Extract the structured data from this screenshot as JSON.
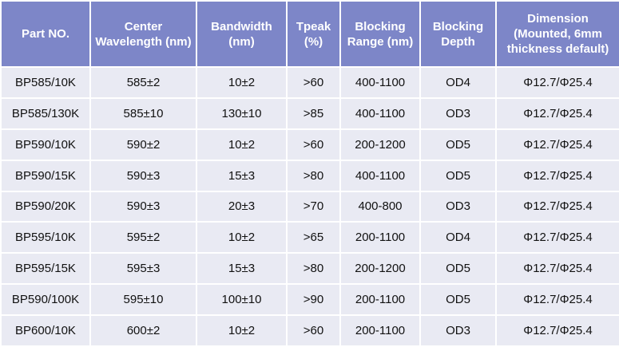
{
  "table": {
    "header": [
      "Part NO.",
      "Center Wavelength (nm)",
      "Bandwidth (nm)",
      "Tpeak (%)",
      "Blocking Range (nm)",
      "Blocking Depth",
      "Dimension (Mounted, 6mm thickness default)"
    ],
    "rows": [
      [
        "BP585/10K",
        "585±2",
        "10±2",
        ">60",
        "400-1100",
        "OD4",
        "Φ12.7/Φ25.4"
      ],
      [
        "BP585/130K",
        "585±10",
        "130±10",
        ">85",
        "400-1100",
        "OD3",
        "Φ12.7/Φ25.4"
      ],
      [
        "BP590/10K",
        "590±2",
        "10±2",
        ">60",
        "200-1200",
        "OD5",
        "Φ12.7/Φ25.4"
      ],
      [
        "BP590/15K",
        "590±3",
        "15±3",
        ">80",
        "400-1100",
        "OD5",
        "Φ12.7/Φ25.4"
      ],
      [
        "BP590/20K",
        "590±3",
        "20±3",
        ">70",
        "400-800",
        "OD3",
        "Φ12.7/Φ25.4"
      ],
      [
        "BP595/10K",
        "595±2",
        "10±2",
        ">65",
        "200-1100",
        "OD4",
        "Φ12.7/Φ25.4"
      ],
      [
        "BP595/15K",
        "595±3",
        "15±3",
        ">80",
        "200-1200",
        "OD5",
        "Φ12.7/Φ25.4"
      ],
      [
        "BP590/100K",
        "595±10",
        "100±10",
        ">90",
        "200-1100",
        "OD5",
        "Φ12.7/Φ25.4"
      ],
      [
        "BP600/10K",
        "600±2",
        "10±2",
        ">60",
        "200-1100",
        "OD3",
        "Φ12.7/Φ25.4"
      ]
    ]
  }
}
